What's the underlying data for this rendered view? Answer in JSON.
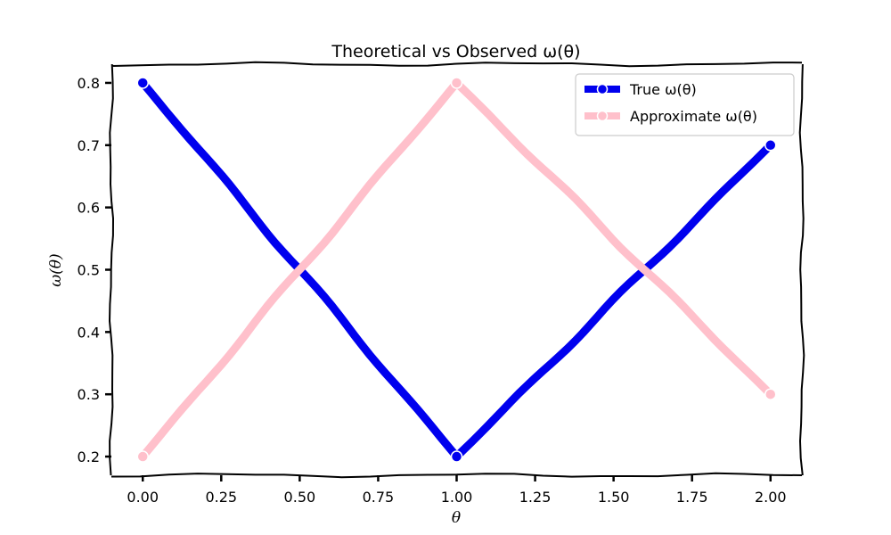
{
  "chart_data": {
    "type": "line",
    "title": "Theoretical vs Observed ω(θ)",
    "xlabel": "θ",
    "ylabel": "ω(θ)",
    "xlim": [
      -0.1,
      2.1
    ],
    "ylim": [
      0.17,
      0.83
    ],
    "x_ticks": [
      "0.00",
      "0.25",
      "0.50",
      "0.75",
      "1.00",
      "1.25",
      "1.50",
      "1.75",
      "2.00"
    ],
    "y_ticks": [
      "0.2",
      "0.3",
      "0.4",
      "0.5",
      "0.6",
      "0.7",
      "0.8"
    ],
    "grid": false,
    "legend_position": "top-right",
    "series": [
      {
        "name": "True ω(θ)",
        "color": "#0000ee",
        "x": [
          0.0,
          1.0,
          2.0
        ],
        "values": [
          0.8,
          0.2,
          0.7
        ]
      },
      {
        "name": "Approximate ω(θ)",
        "color": "#ffc0cb",
        "x": [
          0.0,
          1.0,
          2.0
        ],
        "values": [
          0.2,
          0.8,
          0.3
        ]
      }
    ]
  }
}
